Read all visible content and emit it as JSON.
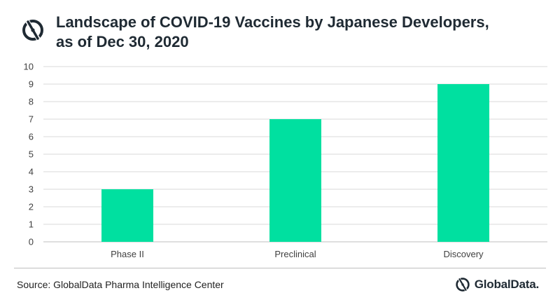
{
  "header": {
    "title_line1": "Landscape of COVID-19 Vaccines by Japanese Developers,",
    "title_line2": "as of Dec 30, 2020"
  },
  "footer": {
    "source": "Source: GlobalData Pharma Intelligence Center",
    "brand": "GlobalData."
  },
  "colors": {
    "bar": "#00e0a0",
    "grid": "#d9d9d9",
    "axis_text": "#404040",
    "title": "#1f2a33"
  },
  "icons": {
    "header_logo": "globaldata-mark-icon",
    "footer_logo": "globaldata-mark-icon"
  },
  "chart_data": {
    "type": "bar",
    "title": "Landscape of COVID-19 Vaccines by Japanese Developers, as of Dec 30, 2020",
    "categories": [
      "Phase II",
      "Preclinical",
      "Discovery"
    ],
    "values": [
      3,
      7,
      9
    ],
    "xlabel": "",
    "ylabel": "",
    "ylim": [
      0,
      10
    ],
    "yticks": [
      0,
      1,
      2,
      3,
      4,
      5,
      6,
      7,
      8,
      9,
      10
    ],
    "grid": true,
    "legend": "none"
  }
}
